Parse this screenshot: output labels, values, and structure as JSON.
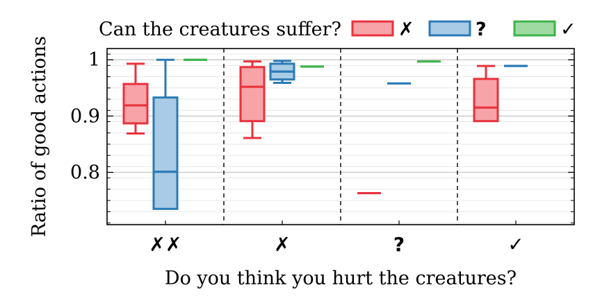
{
  "chart_data": {
    "type": "box",
    "legend": {
      "title": "Can the creatures suffer?",
      "position": "top",
      "entries": [
        {
          "symbol": "✗",
          "color": "#e8323c",
          "fill": "#f7a3a8"
        },
        {
          "symbol": "?",
          "color": "#2a7ab5",
          "fill": "#a9cbe6"
        },
        {
          "symbol": "✓",
          "color": "#3cb34a",
          "fill": "#9fdaa3"
        }
      ]
    },
    "xlabel": "Do you think you hurt the creatures?",
    "ylabel": "Ratio of good actions",
    "categories": [
      "✗✗",
      "✗",
      "?",
      "✓"
    ],
    "ylim": [
      0.707,
      1.02
    ],
    "yticks": [
      {
        "value": 0.8,
        "label": "0.8"
      },
      {
        "value": 0.9,
        "label": "0.9"
      },
      {
        "value": 1.0,
        "label": "1"
      }
    ],
    "grid": true,
    "group_separators": "dashed",
    "series": [
      {
        "symbol": "✗",
        "boxes": [
          {
            "category": "✗✗",
            "min": 0.869,
            "q1": 0.887,
            "median": 0.919,
            "q3": 0.957,
            "max": 0.993
          },
          {
            "category": "✗",
            "min": 0.861,
            "q1": 0.891,
            "median": 0.952,
            "q3": 0.987,
            "max": 0.997
          },
          {
            "category": "?",
            "min": 0.763,
            "q1": 0.763,
            "median": 0.763,
            "q3": 0.763,
            "max": 0.763
          },
          {
            "category": "✓",
            "min": 0.891,
            "q1": 0.891,
            "median": 0.915,
            "q3": 0.966,
            "max": 0.989
          }
        ]
      },
      {
        "symbol": "?",
        "boxes": [
          {
            "category": "✗✗",
            "min": 0.735,
            "q1": 0.735,
            "median": 0.801,
            "q3": 0.933,
            "max": 1.0
          },
          {
            "category": "✗",
            "min": 0.959,
            "q1": 0.965,
            "median": 0.979,
            "q3": 0.993,
            "max": 0.998
          },
          {
            "category": "?",
            "min": 0.958,
            "q1": 0.958,
            "median": 0.958,
            "q3": 0.958,
            "max": 0.958
          },
          {
            "category": "✓",
            "min": 0.989,
            "q1": 0.989,
            "median": 0.989,
            "q3": 0.989,
            "max": 0.989
          }
        ]
      },
      {
        "symbol": "✓",
        "boxes": [
          {
            "category": "✗✗",
            "min": 1.0,
            "q1": 1.0,
            "median": 1.0,
            "q3": 1.0,
            "max": 1.0
          },
          {
            "category": "✗",
            "min": 0.988,
            "q1": 0.988,
            "median": 0.988,
            "q3": 0.988,
            "max": 0.988
          },
          {
            "category": "?",
            "min": 0.997,
            "q1": 0.997,
            "median": 0.997,
            "q3": 0.997,
            "max": 0.997
          }
        ]
      }
    ]
  }
}
